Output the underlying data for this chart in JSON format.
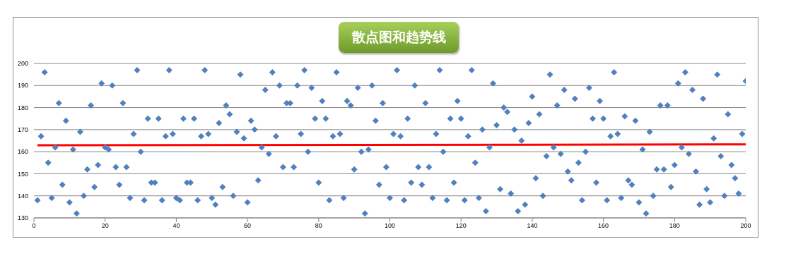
{
  "chart_data": {
    "type": "scatter",
    "title": "散点图和趋势线",
    "x": [
      1,
      2,
      3,
      4,
      5,
      6,
      7,
      8,
      9,
      10,
      11,
      12,
      13,
      14,
      15,
      16,
      17,
      18,
      19,
      20,
      21,
      22,
      23,
      24,
      25,
      26,
      27,
      28,
      29,
      30,
      31,
      32,
      33,
      34,
      35,
      36,
      37,
      38,
      39,
      40,
      41,
      42,
      43,
      44,
      45,
      46,
      47,
      48,
      49,
      50,
      51,
      52,
      53,
      54,
      55,
      56,
      57,
      58,
      59,
      60,
      61,
      62,
      63,
      64,
      65,
      66,
      67,
      68,
      69,
      70,
      71,
      72,
      73,
      74,
      75,
      76,
      77,
      78,
      79,
      80,
      81,
      82,
      83,
      84,
      85,
      86,
      87,
      88,
      89,
      90,
      91,
      92,
      93,
      94,
      95,
      96,
      97,
      98,
      99,
      100,
      101,
      102,
      103,
      104,
      105,
      106,
      107,
      108,
      109,
      110,
      111,
      112,
      113,
      114,
      115,
      116,
      117,
      118,
      119,
      120,
      121,
      122,
      123,
      124,
      125,
      126,
      127,
      128,
      129,
      130,
      131,
      132,
      133,
      134,
      135,
      136,
      137,
      138,
      139,
      140,
      141,
      142,
      143,
      144,
      145,
      146,
      147,
      148,
      149,
      150,
      151,
      152,
      153,
      154,
      155,
      156,
      157,
      158,
      159,
      160,
      161,
      162,
      163,
      164,
      165,
      166,
      167,
      168,
      169,
      170,
      171,
      172,
      173,
      174,
      175,
      176,
      177,
      178,
      179,
      180,
      181,
      182,
      183,
      184,
      185,
      186,
      187,
      188,
      189,
      190,
      191,
      192,
      193,
      194,
      195,
      196,
      197,
      198,
      199,
      200
    ],
    "series": [
      {
        "color": "#4f81bd",
        "values": [
          138,
          167,
          196,
          155,
          139,
          162,
          182,
          145,
          174,
          137,
          161,
          132,
          169,
          140,
          152,
          181,
          144,
          154,
          191,
          162,
          161,
          190,
          153,
          145,
          182,
          153,
          139,
          168,
          197,
          160,
          138,
          175,
          146,
          146,
          175,
          138,
          167,
          197,
          168,
          139,
          138,
          175,
          146,
          146,
          175,
          138,
          167,
          197,
          168,
          139,
          136,
          173,
          144,
          181,
          177,
          140,
          169,
          195,
          166,
          137,
          174,
          170,
          147,
          162,
          188,
          159,
          196,
          167,
          190,
          153,
          182,
          182,
          153,
          190,
          168,
          197,
          160,
          189,
          175,
          146,
          183,
          175,
          138,
          167,
          196,
          168,
          139,
          183,
          181,
          152,
          189,
          160,
          132,
          161,
          190,
          174,
          145,
          182,
          153,
          139,
          168,
          197,
          167,
          138,
          175,
          146,
          190,
          153,
          145,
          182,
          153,
          139,
          168,
          197,
          160,
          138,
          175,
          146,
          183,
          175,
          138,
          167,
          197,
          155,
          139,
          170,
          133,
          162,
          191,
          172,
          143,
          180,
          178,
          141,
          170,
          133,
          165,
          136,
          173,
          185,
          148,
          177,
          140,
          158,
          195,
          162,
          181,
          159,
          188,
          151,
          147,
          184,
          155,
          138,
          160,
          189,
          175,
          146,
          183,
          175,
          138,
          167,
          196,
          168,
          139,
          176,
          147,
          145,
          174,
          137,
          161,
          132,
          169,
          140,
          152,
          181,
          152,
          181,
          144,
          154,
          191,
          162,
          196,
          159,
          188,
          151,
          136,
          184,
          143,
          137,
          166,
          195,
          158,
          140,
          177,
          154,
          148,
          141,
          168,
          192
        ]
      },
      {
        "type": "line",
        "color": "#ff0000",
        "marker": "none",
        "x": [
          1,
          200
        ],
        "values": [
          162.9,
          163.3
        ]
      }
    ],
    "xlim": [
      0,
      200
    ],
    "xticks": [
      0,
      20,
      40,
      60,
      80,
      100,
      120,
      140,
      160,
      180,
      200
    ],
    "ylim": [
      130,
      200
    ],
    "yticks": [
      130,
      140,
      150,
      160,
      170,
      180,
      190,
      200
    ],
    "grid": "y",
    "marker": "diamond",
    "line_style": "solid"
  }
}
